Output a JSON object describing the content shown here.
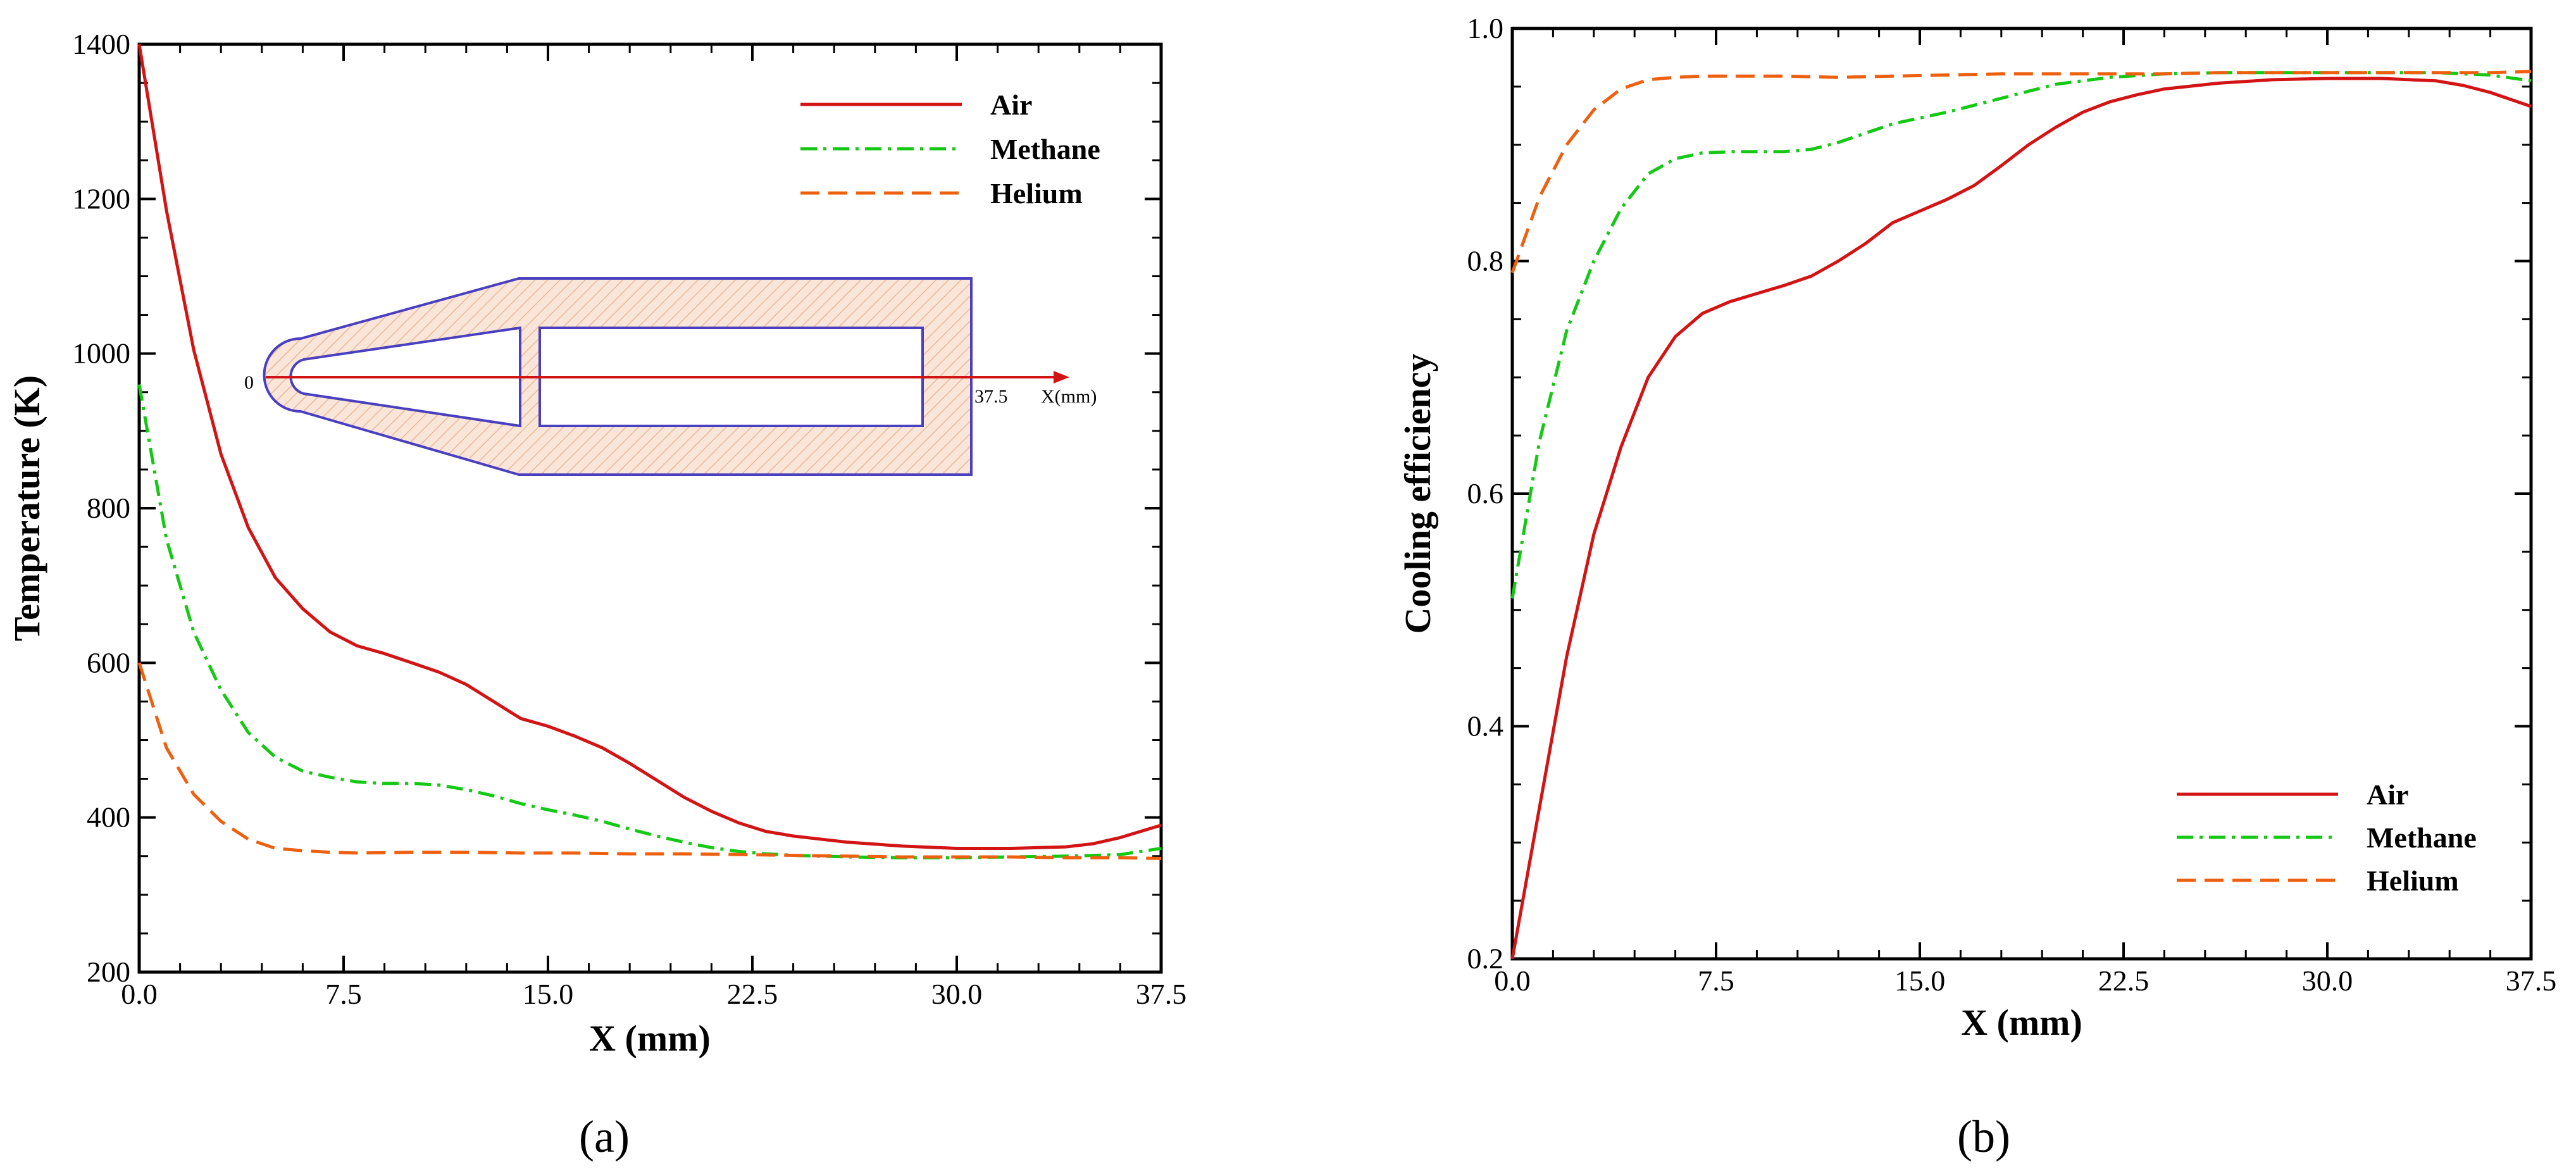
{
  "colors": {
    "air": "#d21414",
    "methane": "#14c814",
    "helium": "#ee6010",
    "inset_outline": "#4a3fbf",
    "inset_fill": "#f7dfcf",
    "axis": "#000000"
  },
  "chart_data": [
    {
      "type": "line",
      "panel_label": "(a)",
      "xlabel": "X (mm)",
      "ylabel": "Temperature (K)",
      "xlim": [
        0,
        37.5
      ],
      "ylim": [
        200,
        1400
      ],
      "xticks": [
        0,
        7.5,
        15,
        22.5,
        30,
        37.5
      ],
      "xtick_labels": [
        "0.0",
        "7.5",
        "15.0",
        "22.5",
        "30.0",
        "37.5"
      ],
      "yticks": [
        200,
        400,
        600,
        800,
        1000,
        1200,
        1400
      ],
      "ytick_labels": [
        "200",
        "400",
        "600",
        "800",
        "1000",
        "1200",
        "1400"
      ],
      "legend_position": "top-right",
      "series": [
        {
          "name": "Air",
          "style": "solid",
          "color_key": "air",
          "x": [
            0,
            1,
            2,
            3,
            4,
            5,
            6,
            7,
            8,
            9,
            10,
            11,
            12,
            13,
            14,
            15,
            16,
            17,
            18,
            19,
            20,
            21,
            22,
            23,
            24,
            26,
            28,
            30,
            32,
            34,
            35,
            36,
            37.5
          ],
          "y": [
            1400,
            1185,
            1005,
            870,
            775,
            710,
            670,
            640,
            622,
            612,
            600,
            588,
            572,
            550,
            528,
            518,
            505,
            490,
            470,
            448,
            426,
            408,
            393,
            382,
            376,
            368,
            363,
            360,
            360,
            362,
            366,
            374,
            390
          ]
        },
        {
          "name": "Methane",
          "style": "dashdot",
          "color_key": "methane",
          "x": [
            0,
            1,
            2,
            3,
            4,
            5,
            6,
            7,
            8,
            9,
            10,
            11,
            12,
            13,
            14,
            15,
            16,
            17,
            18,
            19,
            20,
            21,
            22,
            23,
            24,
            26,
            28,
            30,
            32,
            34,
            36,
            37.5
          ],
          "y": [
            960,
            760,
            640,
            565,
            510,
            478,
            460,
            452,
            446,
            444,
            444,
            442,
            436,
            428,
            418,
            410,
            403,
            395,
            385,
            376,
            368,
            361,
            356,
            353,
            351,
            349,
            348,
            348,
            349,
            350,
            352,
            360
          ]
        },
        {
          "name": "Helium",
          "style": "dashed",
          "color_key": "helium",
          "x": [
            0,
            1,
            2,
            3,
            4,
            5,
            6,
            7,
            8,
            10,
            12,
            14,
            16,
            18,
            20,
            22,
            24,
            26,
            28,
            30,
            32,
            34,
            36,
            37.5
          ],
          "y": [
            600,
            490,
            430,
            395,
            372,
            360,
            357,
            355,
            354,
            355,
            355,
            354,
            354,
            353,
            353,
            352,
            351,
            350,
            349,
            349,
            349,
            348,
            348,
            347
          ]
        }
      ],
      "inset": {
        "origin_label": "0",
        "end_label": "37.5",
        "axis_label": "X(mm)"
      }
    },
    {
      "type": "line",
      "panel_label": "(b)",
      "xlabel": "X (mm)",
      "ylabel": "Cooling efficiency",
      "xlim": [
        0,
        37.5
      ],
      "ylim": [
        0.2,
        1.0
      ],
      "xticks": [
        0,
        7.5,
        15,
        22.5,
        30,
        37.5
      ],
      "xtick_labels": [
        "0.0",
        "7.5",
        "15.0",
        "22.5",
        "30.0",
        "37.5"
      ],
      "yticks": [
        0.2,
        0.4,
        0.6,
        0.8,
        1.0
      ],
      "ytick_labels": [
        "0.2",
        "0.4",
        "0.6",
        "0.8",
        "1.0"
      ],
      "legend_position": "bottom-right",
      "series": [
        {
          "name": "Air",
          "style": "solid",
          "color_key": "air",
          "x": [
            0,
            1,
            2,
            3,
            4,
            5,
            6,
            7,
            8,
            9,
            10,
            11,
            12,
            13,
            14,
            15,
            16,
            17,
            18,
            19,
            20,
            21,
            22,
            23,
            24,
            26,
            28,
            30,
            32,
            34,
            35,
            36,
            37.5
          ],
          "y": [
            0.2,
            0.33,
            0.46,
            0.565,
            0.64,
            0.7,
            0.735,
            0.755,
            0.765,
            0.772,
            0.779,
            0.787,
            0.8,
            0.815,
            0.833,
            0.843,
            0.853,
            0.865,
            0.882,
            0.9,
            0.915,
            0.928,
            0.937,
            0.943,
            0.948,
            0.953,
            0.956,
            0.957,
            0.957,
            0.955,
            0.951,
            0.945,
            0.933
          ]
        },
        {
          "name": "Methane",
          "style": "dashdot",
          "color_key": "methane",
          "x": [
            0,
            1,
            2,
            3,
            4,
            5,
            6,
            7,
            8,
            9,
            10,
            11,
            12,
            13,
            14,
            15,
            16,
            17,
            18,
            19,
            20,
            22,
            24,
            26,
            28,
            30,
            32,
            34,
            36,
            37.5
          ],
          "y": [
            0.51,
            0.645,
            0.74,
            0.8,
            0.845,
            0.875,
            0.888,
            0.893,
            0.894,
            0.894,
            0.894,
            0.896,
            0.902,
            0.91,
            0.918,
            0.923,
            0.928,
            0.934,
            0.94,
            0.946,
            0.952,
            0.958,
            0.961,
            0.962,
            0.962,
            0.962,
            0.962,
            0.962,
            0.96,
            0.955
          ]
        },
        {
          "name": "Helium",
          "style": "dashed",
          "color_key": "helium",
          "x": [
            0,
            1,
            2,
            3,
            4,
            5,
            6,
            7,
            8,
            10,
            12,
            14,
            16,
            18,
            20,
            22,
            24,
            26,
            28,
            30,
            32,
            34,
            36,
            37.5
          ],
          "y": [
            0.79,
            0.855,
            0.9,
            0.93,
            0.948,
            0.956,
            0.958,
            0.959,
            0.959,
            0.959,
            0.958,
            0.959,
            0.96,
            0.961,
            0.961,
            0.961,
            0.961,
            0.962,
            0.962,
            0.962,
            0.962,
            0.962,
            0.962,
            0.963
          ]
        }
      ]
    }
  ]
}
